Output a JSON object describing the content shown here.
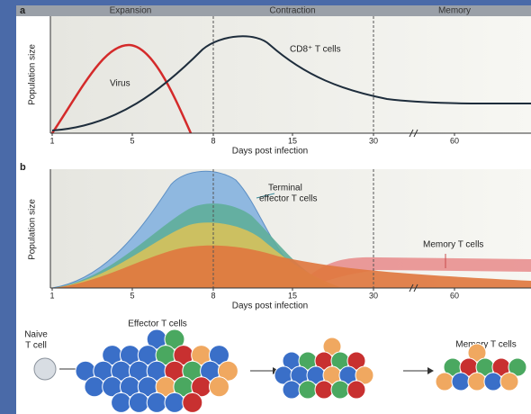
{
  "panel_a": {
    "letter": "a",
    "phases": [
      "Expansion",
      "Contraction",
      "Memory"
    ],
    "virus_label": "Virus",
    "cd8_label": "CD8⁺ T cells",
    "xticks": [
      "1",
      "5",
      "8",
      "15",
      "30",
      "60"
    ],
    "xlabel": "Days post infection",
    "ylabel": "Population size"
  },
  "panel_b": {
    "letter": "b",
    "terminal_label": [
      "Terminal",
      "effector T cells"
    ],
    "memory_label": "Memory T cells",
    "xticks": [
      "1",
      "5",
      "8",
      "15",
      "30",
      "60"
    ],
    "xlabel": "Days post infection",
    "ylabel": "Population size"
  },
  "cells": {
    "naive_label": [
      "Naive",
      "T cell"
    ],
    "effector_label": "Effector T cells",
    "memory_label": "Memory T cells"
  }
}
